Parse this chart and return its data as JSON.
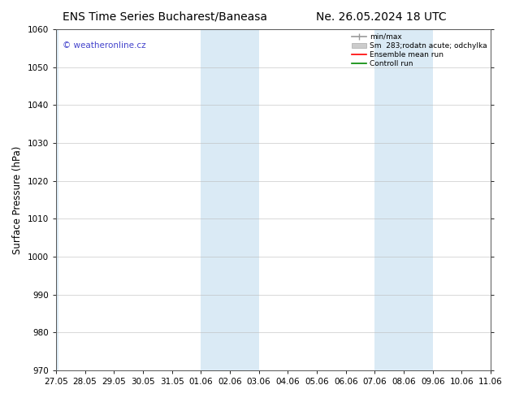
{
  "title_left": "ENS Time Series Bucharest/Baneasa",
  "title_right": "Ne. 26.05.2024 18 UTC",
  "ylabel": "Surface Pressure (hPa)",
  "ylim": [
    970,
    1060
  ],
  "yticks": [
    970,
    980,
    990,
    1000,
    1010,
    1020,
    1030,
    1040,
    1050,
    1060
  ],
  "xlabels": [
    "27.05",
    "28.05",
    "29.05",
    "30.05",
    "31.05",
    "01.06",
    "02.06",
    "03.06",
    "04.06",
    "05.06",
    "06.06",
    "07.06",
    "08.06",
    "09.06",
    "10.06",
    "11.06"
  ],
  "x_values": [
    0,
    1,
    2,
    3,
    4,
    5,
    6,
    7,
    8,
    9,
    10,
    11,
    12,
    13,
    14,
    15
  ],
  "blue_band_ranges": [
    [
      -0.1,
      0.1
    ],
    [
      5,
      7
    ],
    [
      11,
      13
    ]
  ],
  "blue_band_color": "#daeaf5",
  "watermark": "© weatheronline.cz",
  "legend_entries": [
    "min/max",
    "Sm  283;rodatn acute; odchylka",
    "Ensemble mean run",
    "Controll run"
  ],
  "bg_color": "#ffffff",
  "plot_bg_color": "#ffffff",
  "border_color": "#555555",
  "title_fontsize": 10,
  "tick_fontsize": 7.5,
  "ylabel_fontsize": 8.5,
  "watermark_color": "#4444cc",
  "grid_color": "#bbbbbb"
}
